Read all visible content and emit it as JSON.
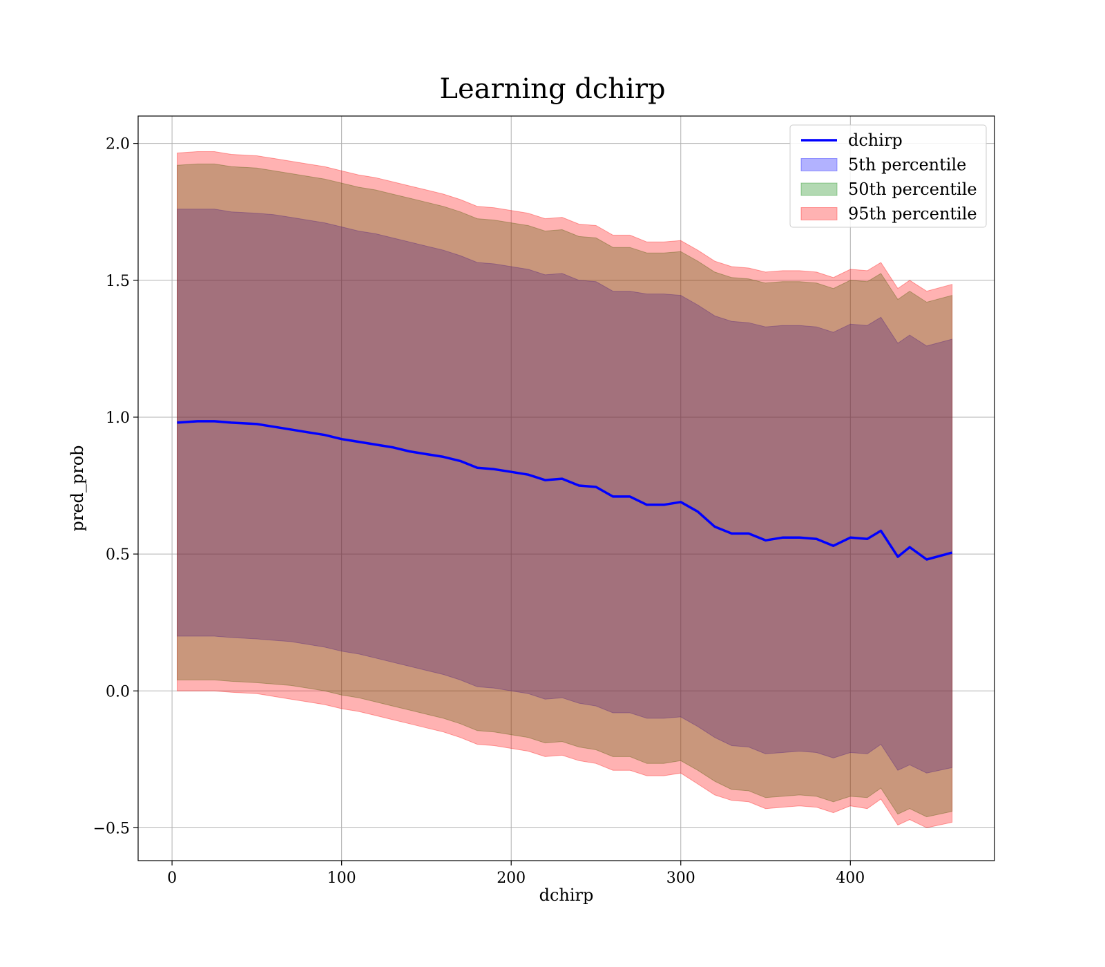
{
  "chart_data": {
    "type": "area",
    "title": "Learning dchirp",
    "xlabel": "dchirp",
    "ylabel": "pred_prob",
    "xlim": [
      -20,
      485
    ],
    "ylim": [
      -0.62,
      2.1
    ],
    "xticks": [
      0,
      100,
      200,
      300,
      400
    ],
    "yticks": [
      -0.5,
      0.0,
      0.5,
      1.0,
      1.5,
      2.0
    ],
    "xtick_labels": [
      "0",
      "100",
      "200",
      "300",
      "400"
    ],
    "ytick_labels": [
      "−0.5",
      "0.0",
      "0.5",
      "1.0",
      "1.5",
      "2.0"
    ],
    "grid": true,
    "legend_position": "top-right",
    "x": [
      3,
      15,
      25,
      35,
      50,
      60,
      70,
      80,
      90,
      100,
      110,
      120,
      130,
      140,
      150,
      160,
      170,
      180,
      190,
      200,
      210,
      220,
      230,
      240,
      250,
      260,
      270,
      280,
      290,
      300,
      310,
      320,
      330,
      340,
      350,
      360,
      370,
      380,
      390,
      400,
      410,
      418,
      428,
      435,
      445,
      460
    ],
    "series": [
      {
        "name": "dchirp",
        "kind": "line",
        "color": "#0000ff",
        "values": [
          0.98,
          0.985,
          0.985,
          0.98,
          0.975,
          0.965,
          0.955,
          0.945,
          0.935,
          0.92,
          0.91,
          0.9,
          0.89,
          0.875,
          0.865,
          0.855,
          0.84,
          0.815,
          0.81,
          0.8,
          0.79,
          0.77,
          0.775,
          0.75,
          0.745,
          0.71,
          0.71,
          0.68,
          0.68,
          0.69,
          0.655,
          0.6,
          0.575,
          0.575,
          0.55,
          0.56,
          0.56,
          0.555,
          0.53,
          0.56,
          0.555,
          0.585,
          0.49,
          0.525,
          0.48,
          0.505
        ]
      },
      {
        "name": "5th percentile",
        "kind": "band",
        "color": "#0000ff",
        "lower": [
          0.2,
          0.2,
          0.2,
          0.195,
          0.19,
          0.185,
          0.18,
          0.17,
          0.16,
          0.145,
          0.135,
          0.12,
          0.105,
          0.09,
          0.075,
          0.06,
          0.04,
          0.015,
          0.01,
          0.0,
          -0.01,
          -0.03,
          -0.025,
          -0.045,
          -0.055,
          -0.08,
          -0.08,
          -0.1,
          -0.1,
          -0.095,
          -0.13,
          -0.17,
          -0.2,
          -0.205,
          -0.23,
          -0.225,
          -0.22,
          -0.225,
          -0.245,
          -0.225,
          -0.23,
          -0.195,
          -0.29,
          -0.27,
          -0.3,
          -0.28
        ],
        "upper": [
          1.76,
          1.76,
          1.76,
          1.75,
          1.745,
          1.74,
          1.73,
          1.72,
          1.71,
          1.695,
          1.68,
          1.67,
          1.655,
          1.64,
          1.625,
          1.61,
          1.59,
          1.565,
          1.56,
          1.55,
          1.54,
          1.52,
          1.525,
          1.5,
          1.495,
          1.46,
          1.46,
          1.45,
          1.45,
          1.445,
          1.41,
          1.37,
          1.35,
          1.345,
          1.33,
          1.335,
          1.335,
          1.33,
          1.31,
          1.34,
          1.335,
          1.365,
          1.27,
          1.3,
          1.26,
          1.285
        ]
      },
      {
        "name": "50th percentile",
        "kind": "band",
        "color": "#008000",
        "lower": [
          0.04,
          0.04,
          0.04,
          0.035,
          0.03,
          0.025,
          0.02,
          0.01,
          0.0,
          -0.015,
          -0.025,
          -0.04,
          -0.055,
          -0.07,
          -0.085,
          -0.1,
          -0.12,
          -0.145,
          -0.15,
          -0.16,
          -0.17,
          -0.19,
          -0.185,
          -0.205,
          -0.215,
          -0.24,
          -0.24,
          -0.265,
          -0.265,
          -0.255,
          -0.29,
          -0.33,
          -0.36,
          -0.365,
          -0.39,
          -0.385,
          -0.38,
          -0.385,
          -0.405,
          -0.385,
          -0.39,
          -0.355,
          -0.45,
          -0.43,
          -0.46,
          -0.44
        ],
        "upper": [
          1.92,
          1.925,
          1.925,
          1.915,
          1.91,
          1.9,
          1.89,
          1.88,
          1.87,
          1.855,
          1.84,
          1.83,
          1.815,
          1.8,
          1.785,
          1.77,
          1.75,
          1.725,
          1.72,
          1.71,
          1.7,
          1.68,
          1.685,
          1.66,
          1.655,
          1.62,
          1.62,
          1.6,
          1.6,
          1.605,
          1.57,
          1.53,
          1.51,
          1.505,
          1.49,
          1.495,
          1.495,
          1.49,
          1.47,
          1.5,
          1.495,
          1.525,
          1.43,
          1.46,
          1.42,
          1.445
        ]
      },
      {
        "name": "95th percentile",
        "kind": "band",
        "color": "#ff0000",
        "lower": [
          0.0,
          0.0,
          0.0,
          -0.005,
          -0.01,
          -0.02,
          -0.03,
          -0.04,
          -0.05,
          -0.065,
          -0.075,
          -0.09,
          -0.105,
          -0.12,
          -0.135,
          -0.15,
          -0.17,
          -0.195,
          -0.2,
          -0.21,
          -0.22,
          -0.24,
          -0.235,
          -0.255,
          -0.265,
          -0.29,
          -0.29,
          -0.31,
          -0.31,
          -0.3,
          -0.34,
          -0.38,
          -0.4,
          -0.405,
          -0.43,
          -0.425,
          -0.42,
          -0.425,
          -0.445,
          -0.42,
          -0.43,
          -0.395,
          -0.49,
          -0.47,
          -0.5,
          -0.48
        ],
        "upper": [
          1.965,
          1.97,
          1.97,
          1.96,
          1.955,
          1.945,
          1.935,
          1.925,
          1.915,
          1.9,
          1.885,
          1.875,
          1.86,
          1.845,
          1.83,
          1.815,
          1.795,
          1.77,
          1.765,
          1.755,
          1.745,
          1.725,
          1.73,
          1.705,
          1.7,
          1.665,
          1.665,
          1.64,
          1.64,
          1.645,
          1.61,
          1.57,
          1.55,
          1.545,
          1.53,
          1.535,
          1.535,
          1.53,
          1.51,
          1.54,
          1.535,
          1.565,
          1.47,
          1.5,
          1.46,
          1.485
        ]
      }
    ]
  }
}
